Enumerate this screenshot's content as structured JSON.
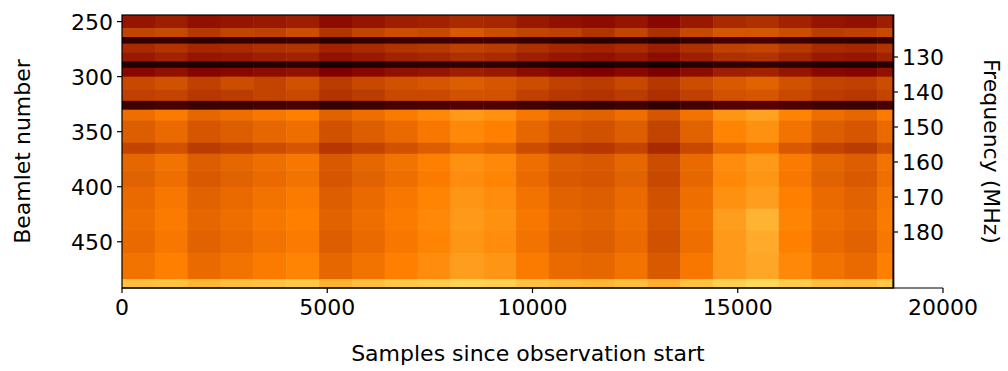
{
  "chart_data": {
    "type": "heatmap",
    "x_label": "Samples since observation start",
    "y_label": "Beamlet number",
    "y2_label": "Frequency (MHz)",
    "xlim": [
      0,
      20000
    ],
    "xticks": [
      0,
      5000,
      10000,
      15000,
      20000
    ],
    "ylim": [
      244,
      492
    ],
    "yticks": [
      250,
      300,
      350,
      400,
      450
    ],
    "y2lim": [
      118,
      196
    ],
    "y2ticks": [
      130,
      140,
      150,
      160,
      170,
      180
    ],
    "clim": [
      0,
      12
    ],
    "x_bins": [
      0,
      800,
      1600,
      2400,
      3200,
      4000,
      4800,
      5600,
      6400,
      7200,
      8000,
      8800,
      9600,
      10400,
      11200,
      12000,
      12800,
      13600,
      14400,
      15200,
      16000,
      16800,
      17600,
      18400,
      18800
    ],
    "y_bins": [
      244,
      256,
      264,
      270,
      278,
      286,
      292,
      300,
      312,
      322,
      330,
      340,
      360,
      370,
      385,
      400,
      420,
      440,
      460,
      484,
      492
    ],
    "cells": [
      [
        3.5,
        3.7,
        3.4,
        3.5,
        3.6,
        3.7,
        3.3,
        3.5,
        3.7,
        3.8,
        4.0,
        3.9,
        3.6,
        3.4,
        3.3,
        3.5,
        3.2,
        3.6,
        4.0,
        4.1,
        3.8,
        3.5,
        3.4,
        3.7
      ],
      [
        4.6,
        4.7,
        4.3,
        4.6,
        4.5,
        4.8,
        4.2,
        4.6,
        4.8,
        4.7,
        5.1,
        4.8,
        4.6,
        4.5,
        4.2,
        4.6,
        4.1,
        4.7,
        5.0,
        5.0,
        4.8,
        4.4,
        4.5,
        4.7
      ],
      [
        1.2,
        1.3,
        1.1,
        1.2,
        1.3,
        1.4,
        1.0,
        1.2,
        1.4,
        1.4,
        1.6,
        1.5,
        1.3,
        1.1,
        1.0,
        1.2,
        0.9,
        1.3,
        1.6,
        1.7,
        1.4,
        1.2,
        1.1,
        1.4
      ],
      [
        4.0,
        4.2,
        3.9,
        4.0,
        4.1,
        4.2,
        3.8,
        4.0,
        4.2,
        4.3,
        4.5,
        4.4,
        4.1,
        3.9,
        3.8,
        4.0,
        3.7,
        4.1,
        4.5,
        4.6,
        4.3,
        4.0,
        3.9,
        4.2
      ],
      [
        3.6,
        3.8,
        3.5,
        3.6,
        3.7,
        3.8,
        3.4,
        3.6,
        3.8,
        3.9,
        4.1,
        4.0,
        3.7,
        3.5,
        3.4,
        3.6,
        3.3,
        3.7,
        4.1,
        4.2,
        3.9,
        3.6,
        3.5,
        3.8
      ],
      [
        0.8,
        0.9,
        0.7,
        0.8,
        0.9,
        1.0,
        0.6,
        0.8,
        1.0,
        1.0,
        1.2,
        1.1,
        0.9,
        0.7,
        0.6,
        0.8,
        0.5,
        0.9,
        1.2,
        1.3,
        1.0,
        0.8,
        0.7,
        1.0
      ],
      [
        3.2,
        3.4,
        3.1,
        3.2,
        3.3,
        3.4,
        3.0,
        3.2,
        3.4,
        3.5,
        3.7,
        3.6,
        3.3,
        3.1,
        3.0,
        3.2,
        2.9,
        3.3,
        3.7,
        3.8,
        3.5,
        3.2,
        3.1,
        3.4
      ],
      [
        4.7,
        4.9,
        4.5,
        4.8,
        4.6,
        4.9,
        4.4,
        4.7,
        4.9,
        5.0,
        5.2,
        5.0,
        4.8,
        4.5,
        4.4,
        4.7,
        4.3,
        4.8,
        5.1,
        5.3,
        4.9,
        4.6,
        4.5,
        4.8
      ],
      [
        4.5,
        4.6,
        4.3,
        4.4,
        4.6,
        4.7,
        4.2,
        4.4,
        4.7,
        4.7,
        4.9,
        4.9,
        4.5,
        4.3,
        4.2,
        4.4,
        4.1,
        4.5,
        4.9,
        5.0,
        4.7,
        4.4,
        4.3,
        4.6
      ],
      [
        1.5,
        1.7,
        1.4,
        1.5,
        1.6,
        1.7,
        1.3,
        1.5,
        1.7,
        1.8,
        2.0,
        1.9,
        1.6,
        1.4,
        1.3,
        1.5,
        1.2,
        1.6,
        2.0,
        2.1,
        1.8,
        1.5,
        1.4,
        1.7
      ],
      [
        5.6,
        5.9,
        5.4,
        5.6,
        5.8,
        6.0,
        5.3,
        5.6,
        5.9,
        6.2,
        6.6,
        6.4,
        5.8,
        5.4,
        5.3,
        5.6,
        5.0,
        5.7,
        6.5,
        6.8,
        6.1,
        5.6,
        5.4,
        5.9
      ],
      [
        5.2,
        5.5,
        5.0,
        5.2,
        5.4,
        5.6,
        4.9,
        5.2,
        5.5,
        5.8,
        6.2,
        6.0,
        5.4,
        5.0,
        4.9,
        5.2,
        4.6,
        5.3,
        6.1,
        6.4,
        5.7,
        5.2,
        5.0,
        5.5
      ],
      [
        4.6,
        4.9,
        4.4,
        4.6,
        4.8,
        5.0,
        4.3,
        4.6,
        4.9,
        5.2,
        5.6,
        5.4,
        4.8,
        4.4,
        4.3,
        4.6,
        4.0,
        4.7,
        5.5,
        5.8,
        5.1,
        4.6,
        4.4,
        4.9
      ],
      [
        5.4,
        5.7,
        5.2,
        5.4,
        5.6,
        5.8,
        5.1,
        5.4,
        5.7,
        6.0,
        6.4,
        6.2,
        5.6,
        5.2,
        5.1,
        5.4,
        4.8,
        5.5,
        6.3,
        6.6,
        5.9,
        5.4,
        5.2,
        5.7
      ],
      [
        5.3,
        5.6,
        5.1,
        5.3,
        5.5,
        5.7,
        5.0,
        5.3,
        5.6,
        5.9,
        6.3,
        6.1,
        5.5,
        5.1,
        5.0,
        5.3,
        4.7,
        5.4,
        6.2,
        6.5,
        5.8,
        5.3,
        5.1,
        5.6
      ],
      [
        5.5,
        5.8,
        5.3,
        5.5,
        5.7,
        5.9,
        5.2,
        5.5,
        5.8,
        6.1,
        6.5,
        6.3,
        5.7,
        5.3,
        5.2,
        5.5,
        4.9,
        5.6,
        6.4,
        6.7,
        6.0,
        5.5,
        5.3,
        5.8
      ],
      [
        5.6,
        5.9,
        5.4,
        5.6,
        5.8,
        6.0,
        5.3,
        5.6,
        5.9,
        6.2,
        6.6,
        6.4,
        5.8,
        5.4,
        5.3,
        5.6,
        5.0,
        5.7,
        6.7,
        7.2,
        6.1,
        5.6,
        5.4,
        5.9
      ],
      [
        5.5,
        5.8,
        5.3,
        5.5,
        5.7,
        5.9,
        5.2,
        5.5,
        5.8,
        6.1,
        6.5,
        6.3,
        5.7,
        5.3,
        5.2,
        5.5,
        4.9,
        5.6,
        6.6,
        7.0,
        6.0,
        5.5,
        5.3,
        5.8
      ],
      [
        5.7,
        6.0,
        5.5,
        5.7,
        5.9,
        6.1,
        5.4,
        5.7,
        6.0,
        6.3,
        6.7,
        6.5,
        5.9,
        5.5,
        5.4,
        5.7,
        5.1,
        5.8,
        6.6,
        6.9,
        6.2,
        5.7,
        5.5,
        6.0
      ],
      [
        7.5,
        7.6,
        7.3,
        7.5,
        7.6,
        7.7,
        7.2,
        7.5,
        7.7,
        7.8,
        8.0,
        7.9,
        7.6,
        7.4,
        7.3,
        7.5,
        7.1,
        7.6,
        7.9,
        8.1,
        7.8,
        7.5,
        7.4,
        7.7
      ]
    ]
  }
}
